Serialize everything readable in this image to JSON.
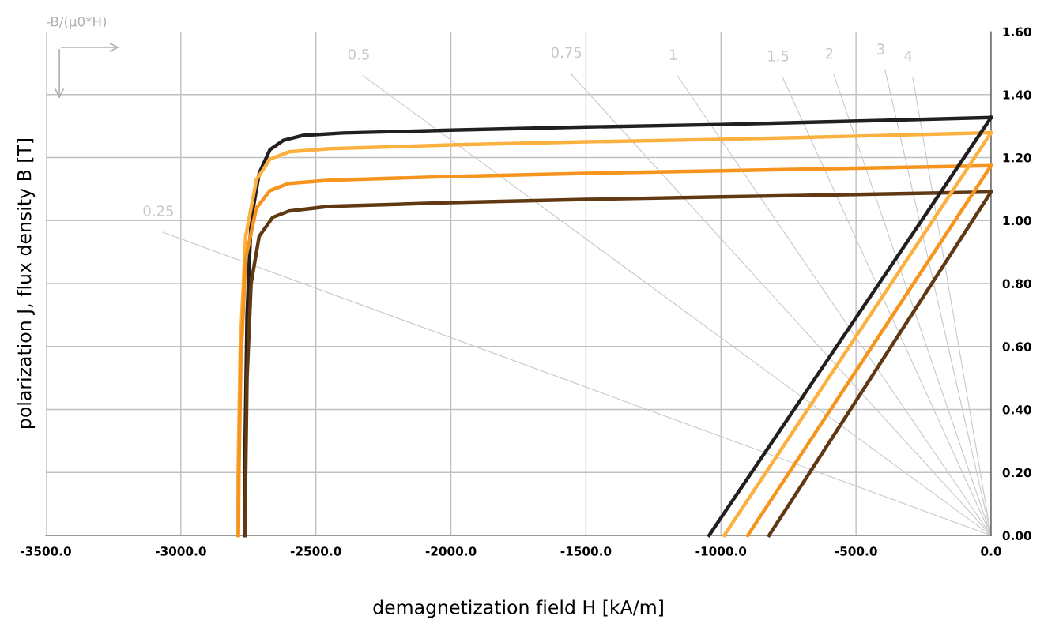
{
  "chart_data": {
    "type": "line",
    "xlabel": "demagnetization field H [kA/m]",
    "ylabel": "polarization J, flux density B [T]",
    "annotations": [
      "-B/(μ0*H)"
    ],
    "xlim": [
      -3500,
      0
    ],
    "ylim": [
      0,
      1.6
    ],
    "xticks": [
      {
        "value": -3500,
        "label": "-3500.0"
      },
      {
        "value": -3000,
        "label": "-3000.0"
      },
      {
        "value": -2500,
        "label": "-2500.0"
      },
      {
        "value": -2000,
        "label": "-2000.0"
      },
      {
        "value": -1500,
        "label": "-1500.0"
      },
      {
        "value": -1000,
        "label": "-1000.0"
      },
      {
        "value": -500,
        "label": "-500.0"
      },
      {
        "value": 0,
        "label": "0.0"
      }
    ],
    "yticks": [
      {
        "value": 0,
        "label": "0.00"
      },
      {
        "value": 0.2,
        "label": "0.20"
      },
      {
        "value": 0.4,
        "label": "0.40"
      },
      {
        "value": 0.6,
        "label": "0.60"
      },
      {
        "value": 0.8,
        "label": "0.80"
      },
      {
        "value": 1.0,
        "label": "1.00"
      },
      {
        "value": 1.2,
        "label": "1.20"
      },
      {
        "value": 1.4,
        "label": "1.40"
      },
      {
        "value": 1.6,
        "label": "1.60"
      }
    ],
    "grid": true,
    "legend": false,
    "marker": "none",
    "line_style": "solid",
    "series": [
      {
        "name": "0.25",
        "color": "#c8c8c8",
        "x": [
          -3067,
          0
        ],
        "values": [
          0.963,
          0
        ]
      },
      {
        "name": "0.5",
        "color": "#c8c8c8",
        "x": [
          -2325,
          0
        ],
        "values": [
          1.46,
          0
        ]
      },
      {
        "name": "0.75",
        "color": "#c8c8c8",
        "x": [
          -1556,
          0
        ],
        "values": [
          1.466,
          0
        ]
      },
      {
        "name": "1",
        "color": "#c8c8c8",
        "x": [
          -1161,
          0
        ],
        "values": [
          1.459,
          0
        ]
      },
      {
        "name": "1.5",
        "color": "#c8c8c8",
        "x": [
          -772,
          0
        ],
        "values": [
          1.455,
          0
        ]
      },
      {
        "name": "2",
        "color": "#c8c8c8",
        "x": [
          -582,
          0
        ],
        "values": [
          1.463,
          0
        ]
      },
      {
        "name": "3",
        "color": "#c8c8c8",
        "x": [
          -392,
          0
        ],
        "values": [
          1.477,
          0
        ]
      },
      {
        "name": "4",
        "color": "#c8c8c8",
        "x": [
          -290,
          0
        ],
        "values": [
          1.455,
          0
        ]
      },
      {
        "color": "#231f20",
        "x": [
          0,
          -400,
          -1000,
          -1500,
          -2000,
          -2400,
          -2550,
          -2620,
          -2670,
          -2710,
          -2740,
          -2755,
          -2762,
          -2765
        ],
        "values": [
          1.327,
          1.318,
          1.305,
          1.297,
          1.287,
          1.278,
          1.27,
          1.255,
          1.225,
          1.15,
          1.0,
          0.7,
          0.3,
          0
        ]
      },
      {
        "color": "#fbb040",
        "x": [
          0,
          -500,
          -1000,
          -1500,
          -2000,
          -2450,
          -2600,
          -2670,
          -2720,
          -2760,
          -2780,
          -2788,
          -2790
        ],
        "values": [
          1.279,
          1.268,
          1.258,
          1.25,
          1.24,
          1.228,
          1.218,
          1.195,
          1.13,
          0.95,
          0.6,
          0.2,
          0
        ]
      },
      {
        "color": "#f7941d",
        "x": [
          0,
          -500,
          -1000,
          -1500,
          -2000,
          -2450,
          -2600,
          -2670,
          -2720,
          -2760,
          -2778,
          -2785,
          -2787
        ],
        "values": [
          1.174,
          1.166,
          1.158,
          1.15,
          1.14,
          1.128,
          1.118,
          1.095,
          1.04,
          0.88,
          0.55,
          0.2,
          0
        ]
      },
      {
        "color": "#603913",
        "x": [
          0,
          -500,
          -1000,
          -1500,
          -2000,
          -2450,
          -2600,
          -2660,
          -2710,
          -2740,
          -2755,
          -2760,
          -2762
        ],
        "values": [
          1.091,
          1.083,
          1.075,
          1.067,
          1.057,
          1.045,
          1.03,
          1.01,
          0.95,
          0.8,
          0.5,
          0.2,
          0
        ]
      },
      {
        "color": "#231f20",
        "x": [
          -1044,
          0
        ],
        "values": [
          0,
          1.327
        ]
      },
      {
        "color": "#fbb040",
        "x": [
          -988,
          0
        ],
        "values": [
          0,
          1.279
        ]
      },
      {
        "color": "#f7941d",
        "x": [
          -901,
          0
        ],
        "values": [
          0,
          1.174
        ]
      },
      {
        "color": "#603913",
        "x": [
          -822,
          0
        ],
        "values": [
          0,
          1.091
        ]
      }
    ]
  }
}
